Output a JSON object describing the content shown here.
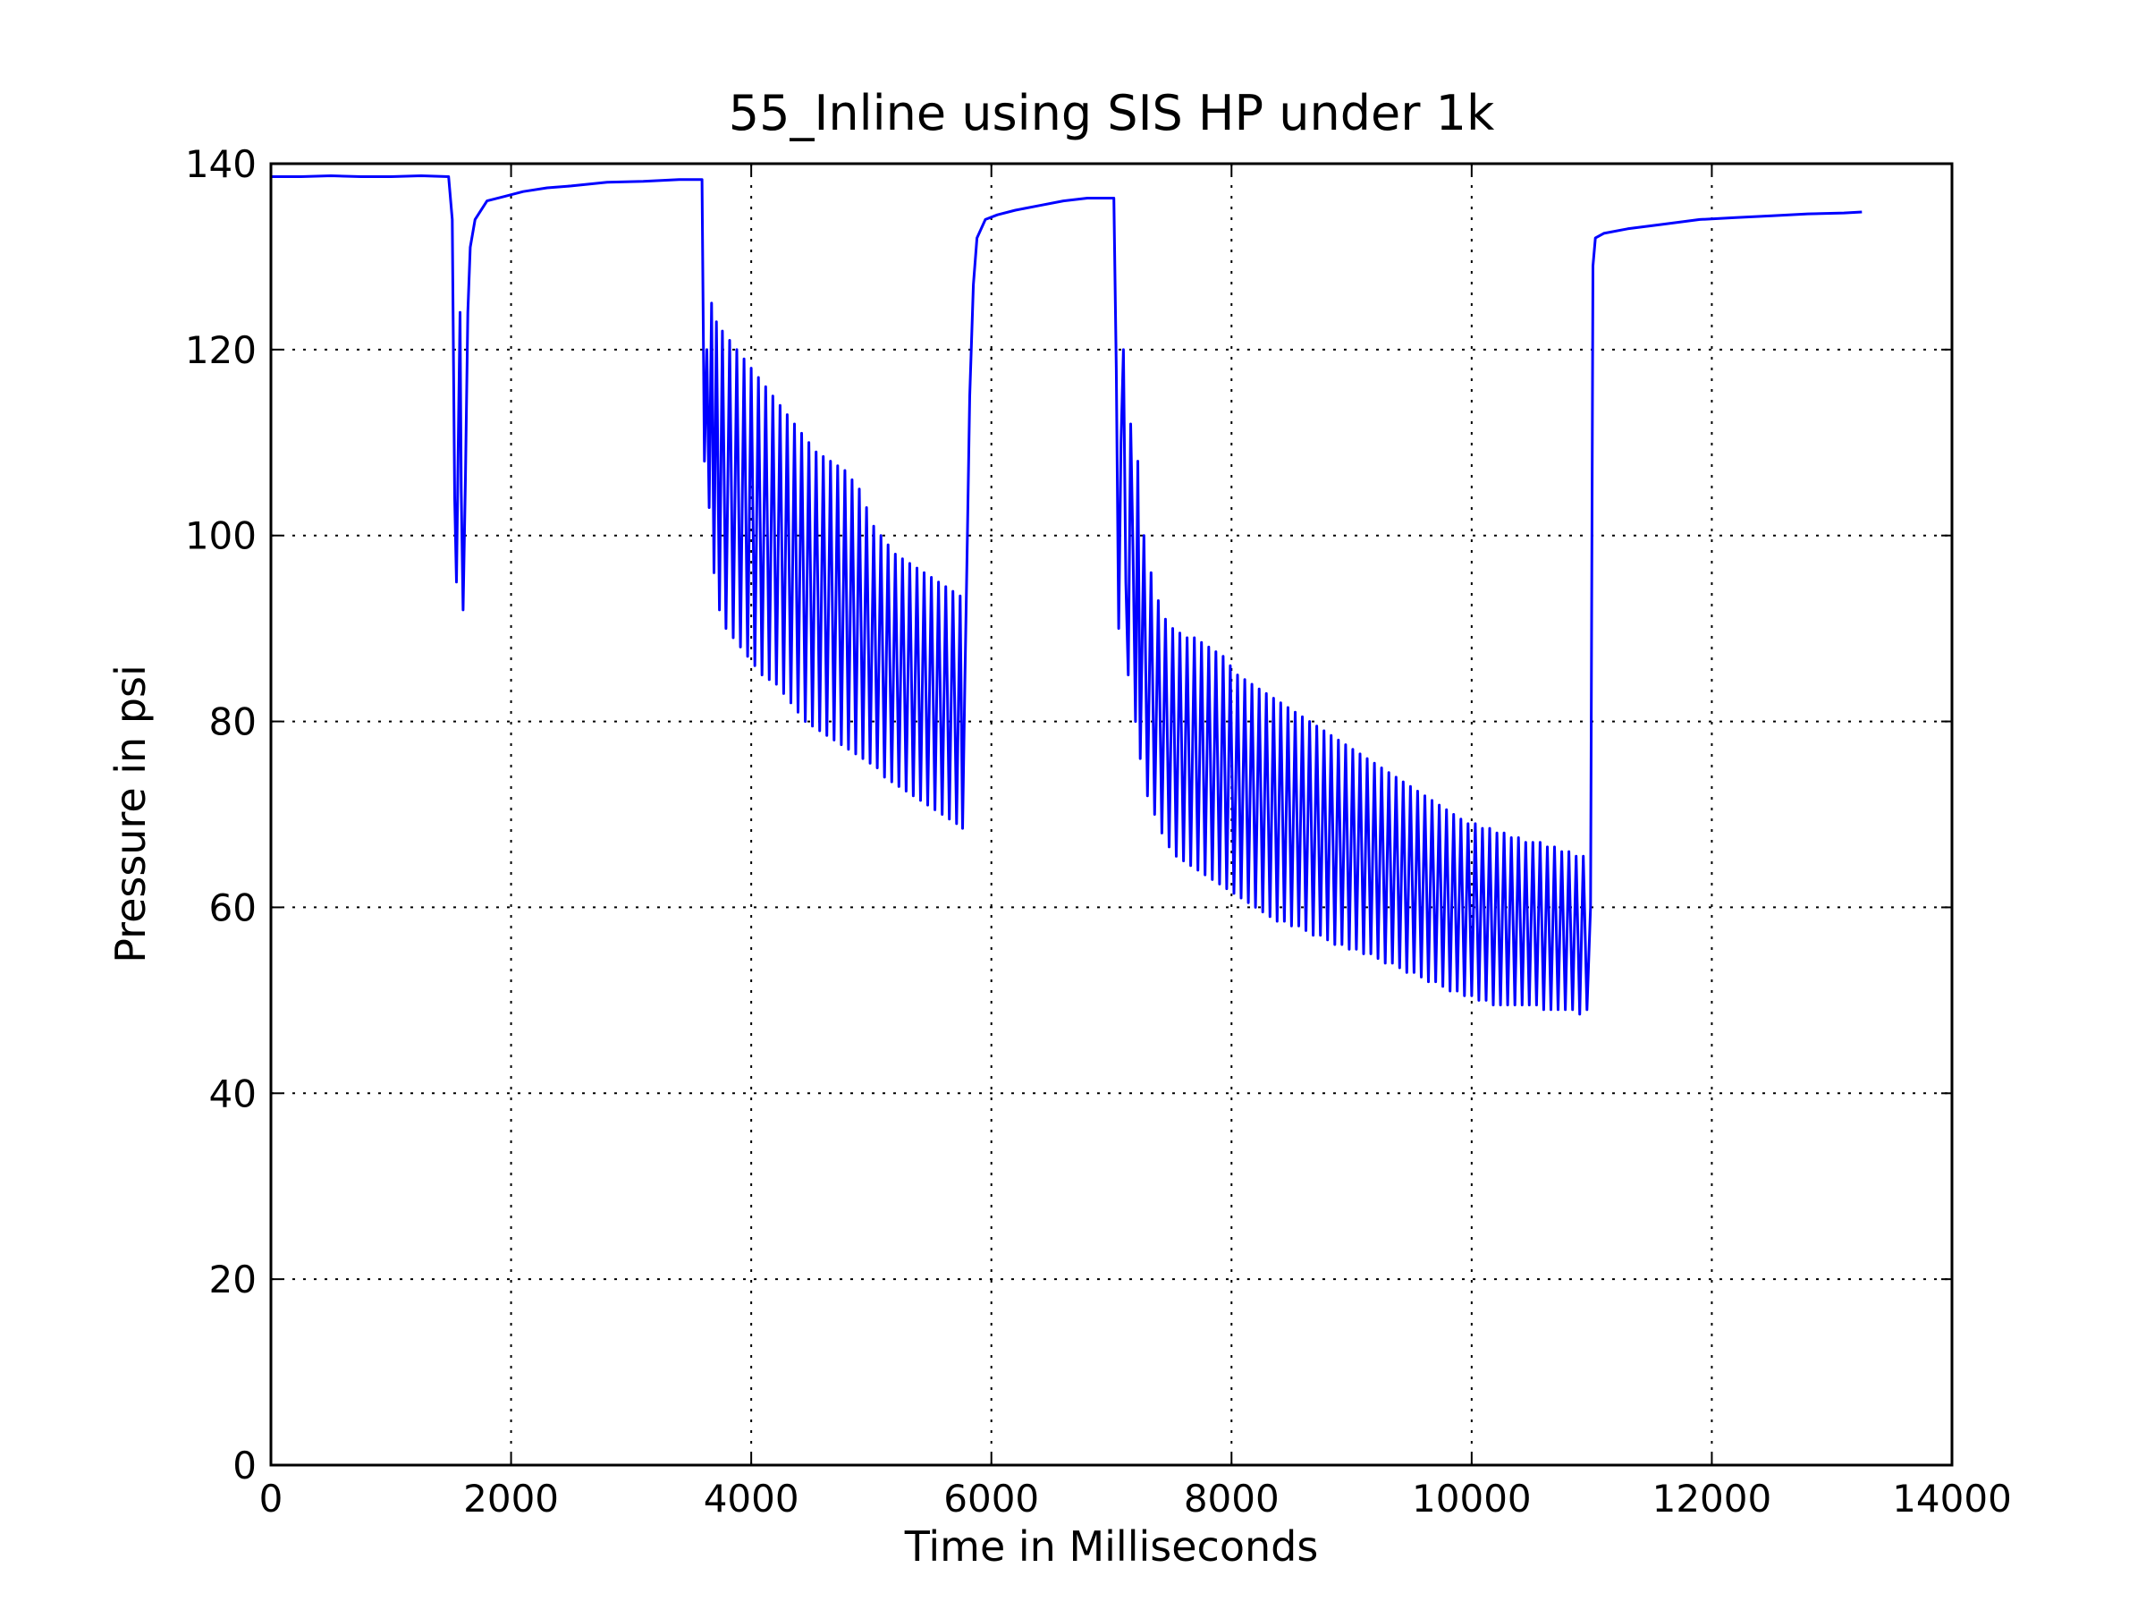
{
  "chart_data": {
    "type": "line",
    "title": "55_Inline using SIS HP under 1k",
    "xlabel": "Time in Milliseconds",
    "ylabel": "Pressure in psi",
    "xlim": [
      0,
      14000
    ],
    "ylim": [
      0,
      140
    ],
    "xticks": [
      0,
      2000,
      4000,
      6000,
      8000,
      10000,
      12000,
      14000
    ],
    "yticks": [
      0,
      20,
      40,
      60,
      80,
      100,
      120,
      140
    ],
    "grid": true,
    "legend": "none",
    "colors": {
      "line": "#0000ff",
      "grid": "#000000",
      "frame": "#000000"
    },
    "series": [
      {
        "points": [
          [
            0,
            138.6
          ],
          [
            250,
            138.6
          ],
          [
            500,
            138.7
          ],
          [
            750,
            138.6
          ],
          [
            1000,
            138.6
          ],
          [
            1250,
            138.7
          ],
          [
            1480,
            138.6
          ],
          [
            1510,
            134
          ],
          [
            1530,
            104
          ],
          [
            1545,
            95
          ],
          [
            1565,
            115
          ],
          [
            1575,
            124
          ],
          [
            1585,
            105
          ],
          [
            1600,
            92
          ],
          [
            1620,
            106
          ],
          [
            1640,
            124
          ],
          [
            1660,
            131
          ],
          [
            1700,
            134
          ],
          [
            1800,
            136
          ],
          [
            1950,
            136.5
          ],
          [
            2100,
            137
          ],
          [
            2300,
            137.4
          ],
          [
            2500,
            137.6
          ],
          [
            2800,
            138
          ],
          [
            3100,
            138.1
          ],
          [
            3400,
            138.3
          ],
          [
            3590,
            138.3
          ],
          [
            3610,
            108
          ],
          [
            3630,
            120
          ],
          [
            3650,
            103
          ],
          [
            3670,
            125
          ],
          [
            3690,
            96
          ],
          [
            3710,
            123
          ],
          [
            3735,
            92
          ],
          [
            3760,
            122
          ],
          [
            3790,
            90
          ],
          [
            3820,
            121
          ],
          [
            3850,
            89
          ],
          [
            3880,
            120
          ],
          [
            3910,
            88
          ],
          [
            3940,
            119
          ],
          [
            3970,
            87
          ],
          [
            4000,
            118
          ],
          [
            4030,
            86
          ],
          [
            4060,
            117
          ],
          [
            4090,
            85
          ],
          [
            4120,
            116
          ],
          [
            4150,
            84.5
          ],
          [
            4180,
            115
          ],
          [
            4210,
            84
          ],
          [
            4240,
            114
          ],
          [
            4270,
            83
          ],
          [
            4300,
            113
          ],
          [
            4330,
            82
          ],
          [
            4360,
            112
          ],
          [
            4390,
            81
          ],
          [
            4420,
            111
          ],
          [
            4450,
            80
          ],
          [
            4480,
            110
          ],
          [
            4510,
            79.5
          ],
          [
            4540,
            109
          ],
          [
            4570,
            79
          ],
          [
            4600,
            108.5
          ],
          [
            4630,
            78.5
          ],
          [
            4660,
            108
          ],
          [
            4690,
            78
          ],
          [
            4720,
            107.5
          ],
          [
            4750,
            77.5
          ],
          [
            4780,
            107
          ],
          [
            4810,
            77
          ],
          [
            4840,
            106
          ],
          [
            4870,
            76.5
          ],
          [
            4900,
            105
          ],
          [
            4930,
            76
          ],
          [
            4960,
            103
          ],
          [
            4990,
            75.5
          ],
          [
            5020,
            101
          ],
          [
            5050,
            75
          ],
          [
            5080,
            100
          ],
          [
            5110,
            74
          ],
          [
            5140,
            99
          ],
          [
            5170,
            73.5
          ],
          [
            5200,
            98
          ],
          [
            5230,
            73
          ],
          [
            5260,
            97.5
          ],
          [
            5290,
            72.5
          ],
          [
            5320,
            97
          ],
          [
            5350,
            72
          ],
          [
            5380,
            96.5
          ],
          [
            5410,
            71.5
          ],
          [
            5440,
            96
          ],
          [
            5470,
            71
          ],
          [
            5500,
            95.5
          ],
          [
            5530,
            70.5
          ],
          [
            5560,
            95
          ],
          [
            5590,
            70
          ],
          [
            5620,
            94.5
          ],
          [
            5650,
            69.5
          ],
          [
            5680,
            94
          ],
          [
            5710,
            69
          ],
          [
            5740,
            93.5
          ],
          [
            5760,
            68.5
          ],
          [
            5780,
            85
          ],
          [
            5800,
            100
          ],
          [
            5820,
            115
          ],
          [
            5850,
            127
          ],
          [
            5880,
            132
          ],
          [
            5950,
            134
          ],
          [
            6050,
            134.5
          ],
          [
            6200,
            135
          ],
          [
            6400,
            135.5
          ],
          [
            6600,
            136
          ],
          [
            6800,
            136.3
          ],
          [
            7020,
            136.3
          ],
          [
            7040,
            118
          ],
          [
            7060,
            90
          ],
          [
            7080,
            110
          ],
          [
            7100,
            120
          ],
          [
            7120,
            95
          ],
          [
            7140,
            85
          ],
          [
            7160,
            112
          ],
          [
            7180,
            98
          ],
          [
            7200,
            80
          ],
          [
            7220,
            108
          ],
          [
            7240,
            76
          ],
          [
            7270,
            100
          ],
          [
            7300,
            72
          ],
          [
            7330,
            96
          ],
          [
            7360,
            70
          ],
          [
            7390,
            93
          ],
          [
            7420,
            68
          ],
          [
            7450,
            91
          ],
          [
            7480,
            66.5
          ],
          [
            7510,
            90
          ],
          [
            7540,
            65.5
          ],
          [
            7570,
            89.5
          ],
          [
            7600,
            65
          ],
          [
            7630,
            89
          ],
          [
            7660,
            64.5
          ],
          [
            7690,
            89
          ],
          [
            7720,
            64
          ],
          [
            7750,
            88.5
          ],
          [
            7780,
            63.5
          ],
          [
            7810,
            88
          ],
          [
            7840,
            63
          ],
          [
            7870,
            87.5
          ],
          [
            7900,
            62.5
          ],
          [
            7930,
            87
          ],
          [
            7960,
            62
          ],
          [
            7990,
            86
          ],
          [
            8020,
            61.5
          ],
          [
            8050,
            85
          ],
          [
            8080,
            61
          ],
          [
            8110,
            84.5
          ],
          [
            8140,
            60.5
          ],
          [
            8170,
            84
          ],
          [
            8200,
            60
          ],
          [
            8230,
            83.5
          ],
          [
            8260,
            59.5
          ],
          [
            8290,
            83
          ],
          [
            8320,
            59
          ],
          [
            8350,
            82.5
          ],
          [
            8380,
            58.5
          ],
          [
            8410,
            82
          ],
          [
            8440,
            58.5
          ],
          [
            8470,
            81.5
          ],
          [
            8500,
            58
          ],
          [
            8530,
            81
          ],
          [
            8560,
            58
          ],
          [
            8590,
            80.5
          ],
          [
            8620,
            57.5
          ],
          [
            8650,
            80
          ],
          [
            8680,
            57
          ],
          [
            8710,
            79.5
          ],
          [
            8740,
            57
          ],
          [
            8770,
            79
          ],
          [
            8800,
            56.5
          ],
          [
            8830,
            78.5
          ],
          [
            8860,
            56
          ],
          [
            8890,
            78
          ],
          [
            8920,
            56
          ],
          [
            8950,
            77.5
          ],
          [
            8980,
            55.5
          ],
          [
            9010,
            77
          ],
          [
            9040,
            55.5
          ],
          [
            9070,
            76.5
          ],
          [
            9100,
            55
          ],
          [
            9130,
            76
          ],
          [
            9160,
            55
          ],
          [
            9190,
            75.5
          ],
          [
            9220,
            54.5
          ],
          [
            9250,
            75
          ],
          [
            9280,
            54
          ],
          [
            9310,
            74.5
          ],
          [
            9340,
            54
          ],
          [
            9370,
            74
          ],
          [
            9400,
            53.5
          ],
          [
            9430,
            73.5
          ],
          [
            9460,
            53
          ],
          [
            9490,
            73
          ],
          [
            9520,
            53
          ],
          [
            9550,
            72.5
          ],
          [
            9580,
            52.5
          ],
          [
            9610,
            72
          ],
          [
            9640,
            52
          ],
          [
            9670,
            71.5
          ],
          [
            9700,
            52
          ],
          [
            9730,
            71
          ],
          [
            9760,
            51.5
          ],
          [
            9790,
            70.5
          ],
          [
            9820,
            51
          ],
          [
            9850,
            70
          ],
          [
            9880,
            51
          ],
          [
            9910,
            69.5
          ],
          [
            9940,
            50.5
          ],
          [
            9970,
            69
          ],
          [
            10000,
            50.5
          ],
          [
            10030,
            69
          ],
          [
            10060,
            50
          ],
          [
            10090,
            68.5
          ],
          [
            10120,
            50
          ],
          [
            10150,
            68.5
          ],
          [
            10180,
            49.5
          ],
          [
            10210,
            68
          ],
          [
            10240,
            49.5
          ],
          [
            10270,
            68
          ],
          [
            10300,
            49.5
          ],
          [
            10330,
            67.5
          ],
          [
            10360,
            49.5
          ],
          [
            10390,
            67.5
          ],
          [
            10420,
            49.5
          ],
          [
            10450,
            67
          ],
          [
            10480,
            49.5
          ],
          [
            10510,
            67
          ],
          [
            10540,
            49.5
          ],
          [
            10570,
            67
          ],
          [
            10600,
            49
          ],
          [
            10630,
            66.5
          ],
          [
            10660,
            49
          ],
          [
            10690,
            66.5
          ],
          [
            10720,
            49
          ],
          [
            10750,
            66
          ],
          [
            10780,
            49
          ],
          [
            10810,
            66
          ],
          [
            10840,
            49
          ],
          [
            10870,
            65.5
          ],
          [
            10900,
            48.5
          ],
          [
            10930,
            65.5
          ],
          [
            10960,
            49
          ],
          [
            10990,
            60
          ],
          [
            11010,
            129
          ],
          [
            11030,
            132
          ],
          [
            11100,
            132.5
          ],
          [
            11300,
            133
          ],
          [
            11600,
            133.5
          ],
          [
            11900,
            134
          ],
          [
            12200,
            134.2
          ],
          [
            12500,
            134.4
          ],
          [
            12800,
            134.6
          ],
          [
            13100,
            134.7
          ],
          [
            13250,
            134.8
          ]
        ]
      }
    ]
  }
}
